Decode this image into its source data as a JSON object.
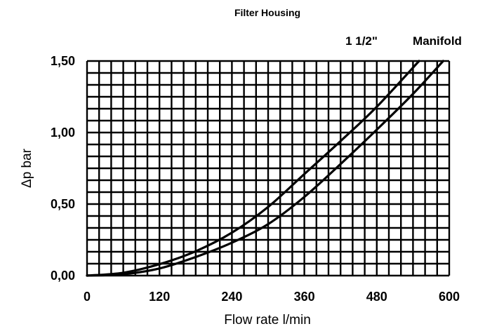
{
  "chart_data": {
    "type": "line",
    "title": "Filter Housing",
    "xlabel": "Flow rate l/min",
    "ylabel": "Δp bar",
    "xlim": [
      0,
      600
    ],
    "ylim": [
      0,
      1.5
    ],
    "x_ticks": [
      "0",
      "120",
      "240",
      "360",
      "480",
      "600"
    ],
    "y_ticks": [
      "0,00",
      "0,50",
      "1,00",
      "1,50"
    ],
    "grid": true,
    "series": [
      {
        "name": "1 1/2\"",
        "x": [
          0,
          60,
          120,
          180,
          240,
          300,
          360,
          420,
          480,
          550
        ],
        "y": [
          0,
          0.02,
          0.08,
          0.17,
          0.3,
          0.48,
          0.71,
          0.94,
          1.18,
          1.5
        ]
      },
      {
        "name": "Manifold",
        "x": [
          0,
          60,
          120,
          180,
          240,
          300,
          360,
          420,
          480,
          540,
          590
        ],
        "y": [
          0,
          0.01,
          0.05,
          0.13,
          0.23,
          0.36,
          0.55,
          0.78,
          1.02,
          1.27,
          1.5
        ]
      }
    ]
  }
}
